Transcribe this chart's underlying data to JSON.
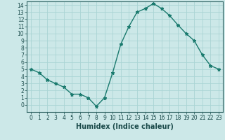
{
  "x": [
    0,
    1,
    2,
    3,
    4,
    5,
    6,
    7,
    8,
    9,
    10,
    11,
    12,
    13,
    14,
    15,
    16,
    17,
    18,
    19,
    20,
    21,
    22,
    23
  ],
  "y": [
    5.0,
    4.5,
    3.5,
    3.0,
    2.5,
    1.5,
    1.5,
    1.0,
    -0.2,
    1.0,
    4.5,
    8.5,
    11.0,
    13.0,
    13.5,
    14.2,
    13.5,
    12.5,
    11.2,
    10.0,
    9.0,
    7.0,
    5.5,
    5.0
  ],
  "xlabel": "Humidex (Indice chaleur)",
  "ylim": [
    -1,
    14.5
  ],
  "xlim": [
    -0.5,
    23.5
  ],
  "line_color": "#1a7a6e",
  "marker": "*",
  "marker_size": 3.5,
  "bg_color": "#cce8e8",
  "grid_color": "#aad4d4",
  "yticks": [
    0,
    1,
    2,
    3,
    4,
    5,
    6,
    7,
    8,
    9,
    10,
    11,
    12,
    13,
    14
  ],
  "xticks": [
    0,
    1,
    2,
    3,
    4,
    5,
    6,
    7,
    8,
    9,
    10,
    11,
    12,
    13,
    14,
    15,
    16,
    17,
    18,
    19,
    20,
    21,
    22,
    23
  ],
  "xlabel_fontsize": 7,
  "tick_fontsize": 5.5,
  "line_width": 1.0,
  "spine_color": "#336666",
  "tick_color": "#336666",
  "label_color": "#1a4a4a"
}
